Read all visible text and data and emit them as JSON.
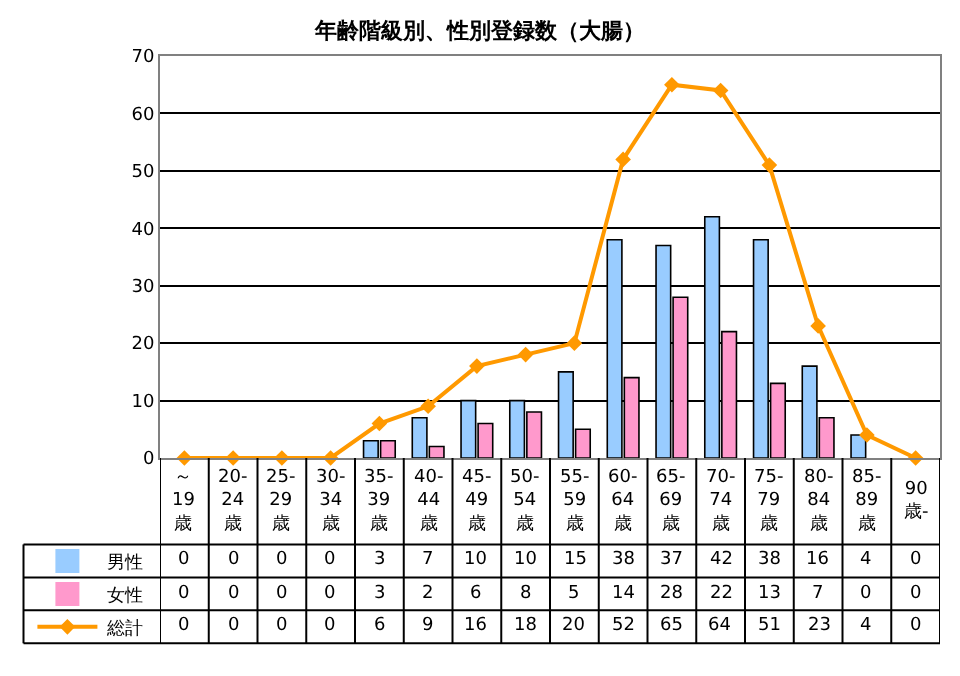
{
  "chart_data": {
    "type": "bar",
    "title": "年齢階級別、性別登録数（大腸）",
    "categories": [
      "～\n19\n歳",
      "20-\n24\n歳",
      "25-\n29\n歳",
      "30-\n34\n歳",
      "35-\n39\n歳",
      "40-\n44\n歳",
      "45-\n49\n歳",
      "50-\n54\n歳",
      "55-\n59\n歳",
      "60-\n64\n歳",
      "65-\n69\n歳",
      "70-\n74\n歳",
      "75-\n79\n歳",
      "80-\n84\n歳",
      "85-\n89\n歳",
      "90\n歳-"
    ],
    "series": [
      {
        "name": "男性",
        "color": "#99ccff",
        "values": [
          0,
          0,
          0,
          0,
          3,
          7,
          10,
          10,
          15,
          38,
          37,
          42,
          38,
          16,
          4,
          0
        ]
      },
      {
        "name": "女性",
        "color": "#ff99cc",
        "values": [
          0,
          0,
          0,
          0,
          3,
          2,
          6,
          8,
          5,
          14,
          28,
          22,
          13,
          7,
          0,
          0
        ]
      },
      {
        "name": "総計",
        "type": "line",
        "color": "#ff9900",
        "marker": "diamond",
        "values": [
          0,
          0,
          0,
          0,
          6,
          9,
          16,
          18,
          20,
          52,
          65,
          64,
          51,
          23,
          4,
          0
        ]
      }
    ],
    "ylim": [
      0,
      70
    ],
    "yticks": [
      0,
      10,
      20,
      30,
      40,
      50,
      60,
      70
    ],
    "grid": "y",
    "data_labels": true,
    "legend": "bottom left"
  }
}
